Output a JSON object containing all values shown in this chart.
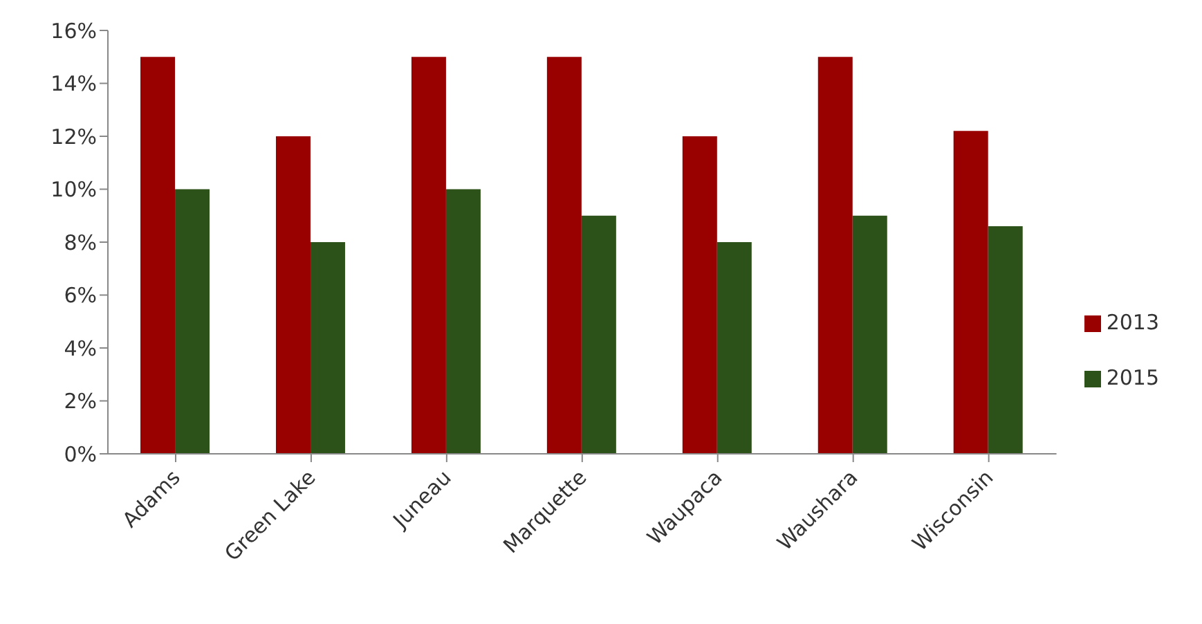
{
  "chart_data": {
    "type": "bar",
    "categories": [
      "Adams",
      "Green Lake",
      "Juneau",
      "Marquette",
      "Waupaca",
      "Waushara",
      "Wisconsin"
    ],
    "series": [
      {
        "name": "2013",
        "color": "#990000",
        "values": [
          15,
          12,
          15,
          15,
          12,
          15,
          12.2
        ]
      },
      {
        "name": "2015",
        "color": "#2d5219",
        "values": [
          10,
          8,
          10,
          9,
          8,
          9,
          8.6
        ]
      }
    ],
    "ylim": [
      0,
      16
    ],
    "yticks": [
      {
        "value": 0,
        "label": "0%"
      },
      {
        "value": 2,
        "label": "2%"
      },
      {
        "value": 4,
        "label": "4%"
      },
      {
        "value": 6,
        "label": "6%"
      },
      {
        "value": 8,
        "label": "8%"
      },
      {
        "value": 10,
        "label": "10%"
      },
      {
        "value": 12,
        "label": "12%"
      },
      {
        "value": 14,
        "label": "14%"
      },
      {
        "value": 16,
        "label": "16%"
      }
    ],
    "grid": false,
    "legend": "right"
  }
}
